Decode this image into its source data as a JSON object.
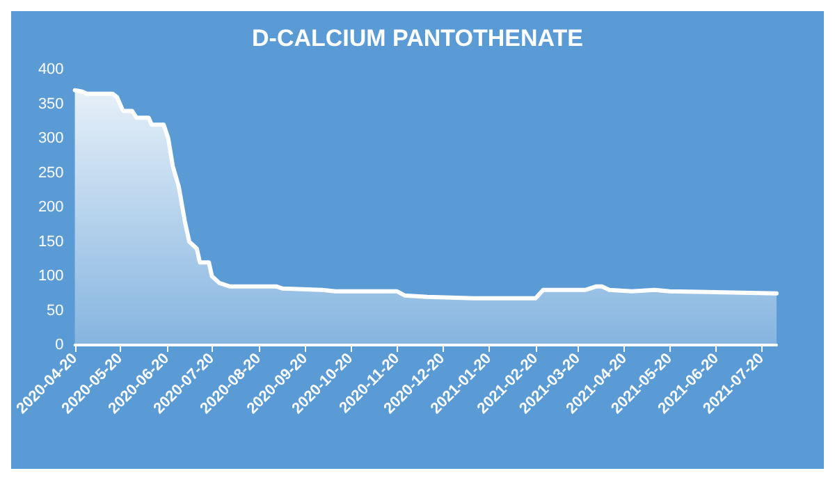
{
  "chart_data": {
    "type": "area",
    "title": "D-CALCIUM PANTOTHENATE",
    "x": [
      "2020-04-20",
      "2020-04-25",
      "2020-04-28",
      "2020-05-15",
      "2020-05-18",
      "2020-05-22",
      "2020-05-28",
      "2020-05-31",
      "2020-06-08",
      "2020-06-10",
      "2020-06-18",
      "2020-06-21",
      "2020-06-24",
      "2020-06-28",
      "2020-07-02",
      "2020-07-05",
      "2020-07-10",
      "2020-07-12",
      "2020-07-18",
      "2020-07-20",
      "2020-07-25",
      "2020-08-01",
      "2020-09-01",
      "2020-09-05",
      "2020-10-01",
      "2020-10-10",
      "2020-11-20",
      "2020-11-25",
      "2020-12-10",
      "2021-01-10",
      "2021-02-20",
      "2021-02-25",
      "2021-03-25",
      "2021-04-01",
      "2021-04-05",
      "2021-04-10",
      "2021-04-25",
      "2021-05-10",
      "2021-05-20",
      "2021-07-30"
    ],
    "series": [
      {
        "color": "#ffffff",
        "values": [
          370,
          368,
          365,
          365,
          360,
          340,
          340,
          330,
          330,
          320,
          320,
          300,
          260,
          230,
          180,
          150,
          140,
          120,
          120,
          100,
          90,
          85,
          85,
          82,
          80,
          78,
          78,
          72,
          70,
          68,
          68,
          80,
          80,
          85,
          85,
          80,
          78,
          80,
          78,
          75
        ]
      }
    ],
    "xlim": [
      "2020-04-20",
      "2021-07-30"
    ],
    "xticks": [
      "2020-04-20",
      "2020-05-20",
      "2020-06-20",
      "2020-07-20",
      "2020-08-20",
      "2020-09-20",
      "2020-10-20",
      "2020-11-20",
      "2020-12-20",
      "2021-01-20",
      "2021-02-20",
      "2021-03-20",
      "2021-04-20",
      "2021-05-20",
      "2021-06-20",
      "2021-07-20"
    ],
    "ylim": [
      0,
      400
    ],
    "yticks": [
      0,
      50,
      100,
      150,
      200,
      250,
      300,
      350,
      400
    ],
    "grid": false,
    "marker": "none",
    "line_style": "solid"
  }
}
